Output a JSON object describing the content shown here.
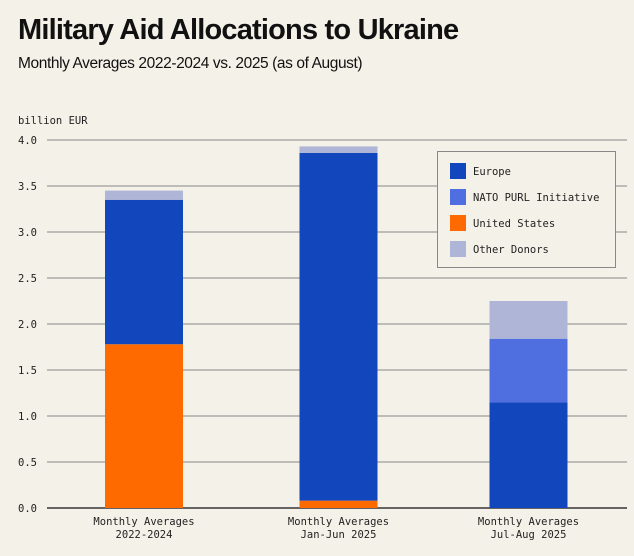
{
  "chart_data": {
    "type": "bar",
    "stacked": true,
    "title": "Military Aid Allocations to Ukraine",
    "subtitle": "Monthly Averages 2022-2024 vs. 2025 (as of August)",
    "ylabel": "billion EUR",
    "xlabel": "",
    "ylim": [
      0,
      4.0
    ],
    "yticks": [
      "0.0",
      "0.5",
      "1.0",
      "1.5",
      "2.0",
      "2.5",
      "3.0",
      "3.5",
      "4.0"
    ],
    "grid": true,
    "legend_position": "top-right",
    "categories": [
      [
        "Monthly Averages",
        "2022-2024"
      ],
      [
        "Monthly Averages",
        "Jan-Jun 2025"
      ],
      [
        "Monthly Averages",
        "Jul-Aug 2025"
      ]
    ],
    "series": [
      {
        "name": "United States",
        "color": "#ff6a00",
        "values": [
          1.78,
          0.08,
          0.0
        ]
      },
      {
        "name": "Europe",
        "color": "#1146bd",
        "values": [
          1.57,
          3.78,
          1.15
        ]
      },
      {
        "name": "NATO PURL Initiative",
        "color": "#4f6ee0",
        "values": [
          0.0,
          0.0,
          0.69
        ]
      },
      {
        "name": "Other Donors",
        "color": "#aeb5d6",
        "values": [
          0.1,
          0.07,
          0.41
        ]
      }
    ],
    "legend_order": [
      "Europe",
      "NATO PURL Initiative",
      "United States",
      "Other Donors"
    ]
  }
}
